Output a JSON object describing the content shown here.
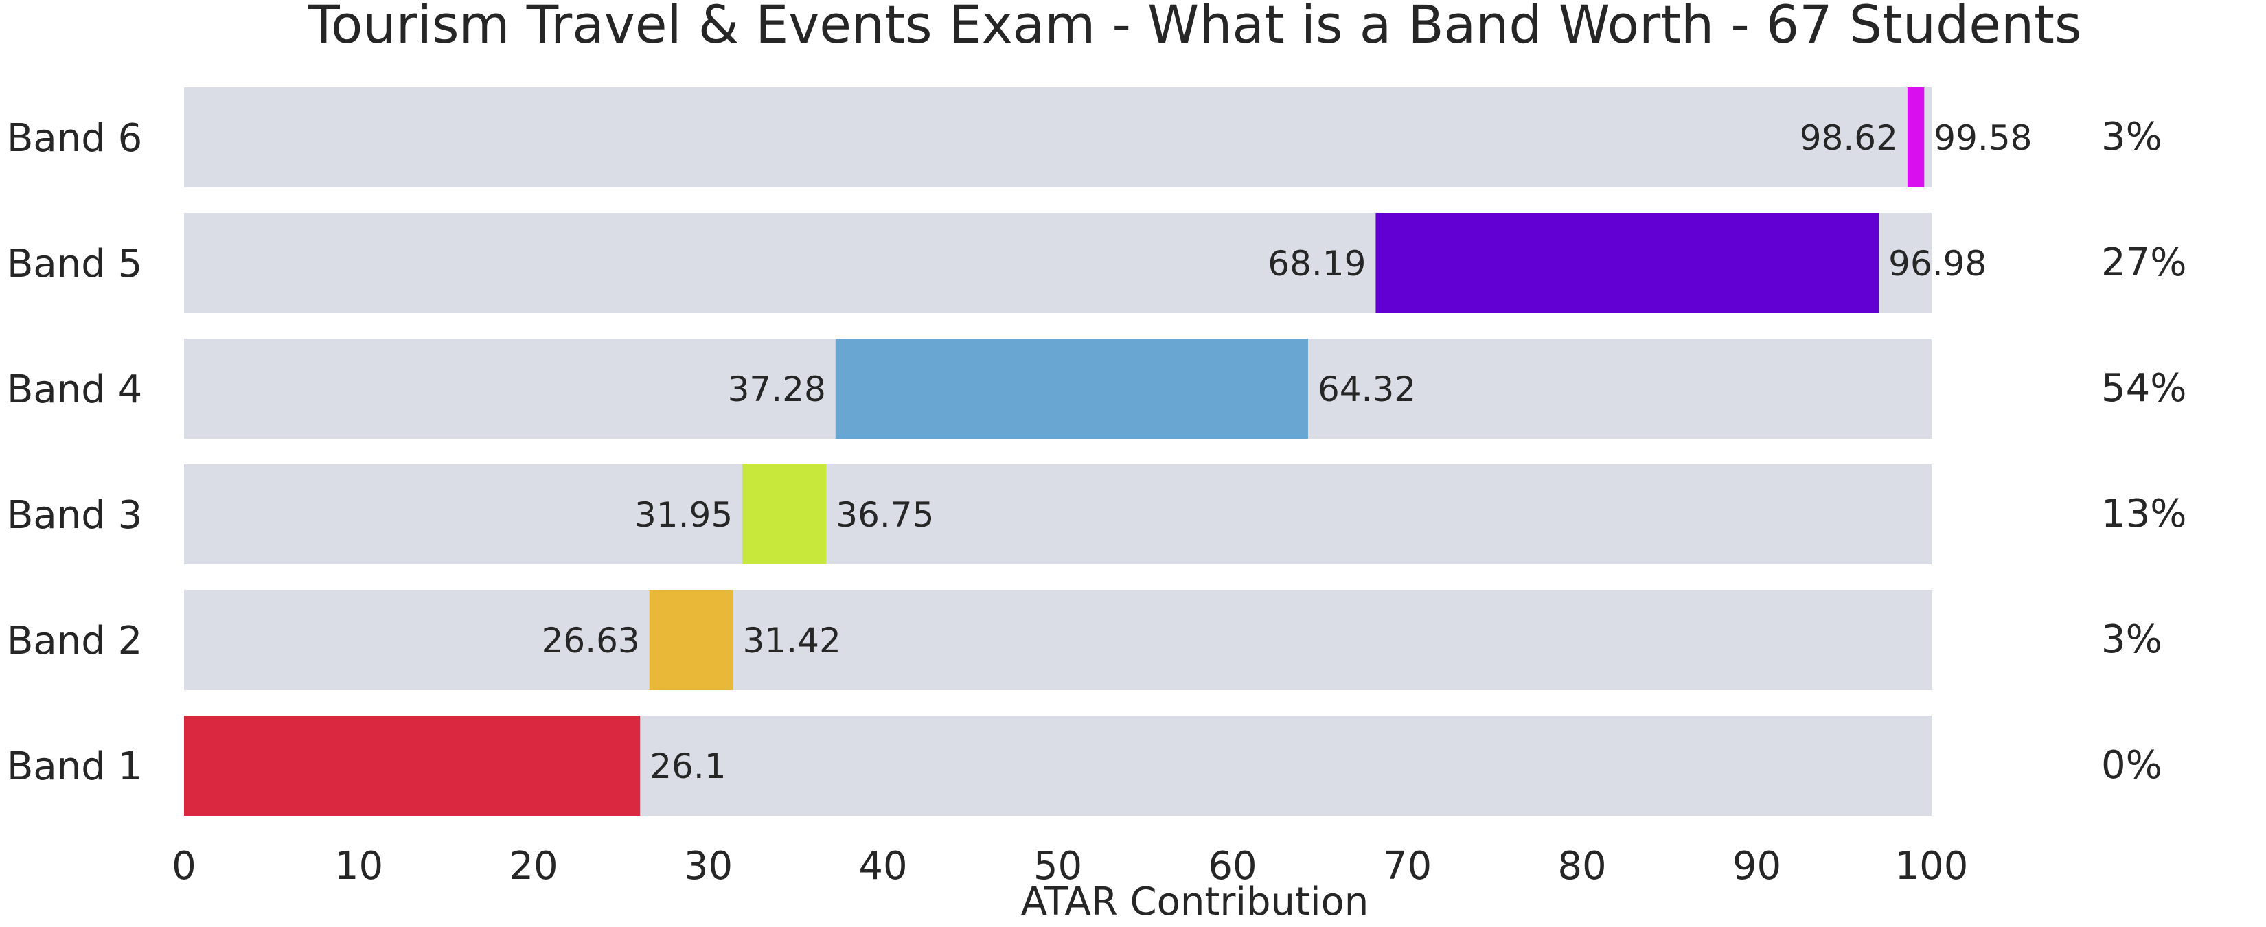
{
  "chart_data": {
    "type": "bar",
    "orientation": "horizontal",
    "title": "Tourism Travel & Events Exam - What is a Band Worth - 67 Students",
    "xlabel": "ATAR Contribution",
    "ylabel": "",
    "xlim": [
      0,
      100
    ],
    "x_ticks": [
      "0",
      "10",
      "20",
      "30",
      "40",
      "50",
      "60",
      "70",
      "80",
      "90",
      "100"
    ],
    "grid": false,
    "background_track_color": "#dadde6",
    "bands": [
      {
        "label": "Band 6",
        "start": 98.62,
        "end": 99.58,
        "start_label": "98.62",
        "end_label": "99.58",
        "percent": "3%",
        "color": "#d90ff0"
      },
      {
        "label": "Band 5",
        "start": 68.19,
        "end": 96.98,
        "start_label": "68.19",
        "end_label": "96.98",
        "percent": "27%",
        "color": "#6200d4"
      },
      {
        "label": "Band 4",
        "start": 37.28,
        "end": 64.32,
        "start_label": "37.28",
        "end_label": "64.32",
        "percent": "54%",
        "color": "#69a6d1"
      },
      {
        "label": "Band 3",
        "start": 31.95,
        "end": 36.75,
        "start_label": "31.95",
        "end_label": "36.75",
        "percent": "13%",
        "color": "#c8e83b"
      },
      {
        "label": "Band 2",
        "start": 26.63,
        "end": 31.42,
        "start_label": "26.63",
        "end_label": "31.42",
        "percent": "3%",
        "color": "#eab838"
      },
      {
        "label": "Band 1",
        "start": 0,
        "end": 26.1,
        "start_label": "",
        "end_label": "26.1",
        "percent": "0%",
        "color": "#d9283f"
      }
    ]
  }
}
